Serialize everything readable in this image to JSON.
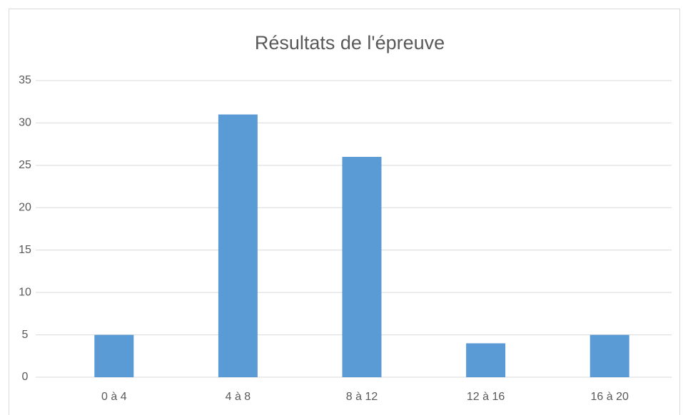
{
  "chart_data": {
    "type": "bar",
    "title": "Résultats de l'épreuve",
    "categories": [
      "0 à 4",
      "4 à 8",
      "8 à 12",
      "12 à 16",
      "16 à 20"
    ],
    "values": [
      5,
      31,
      26,
      4,
      5
    ],
    "color": "#5b9bd5",
    "ylim": [
      0,
      35
    ],
    "yticks": [
      0,
      5,
      10,
      15,
      20,
      25,
      30,
      35
    ],
    "grid": true
  }
}
